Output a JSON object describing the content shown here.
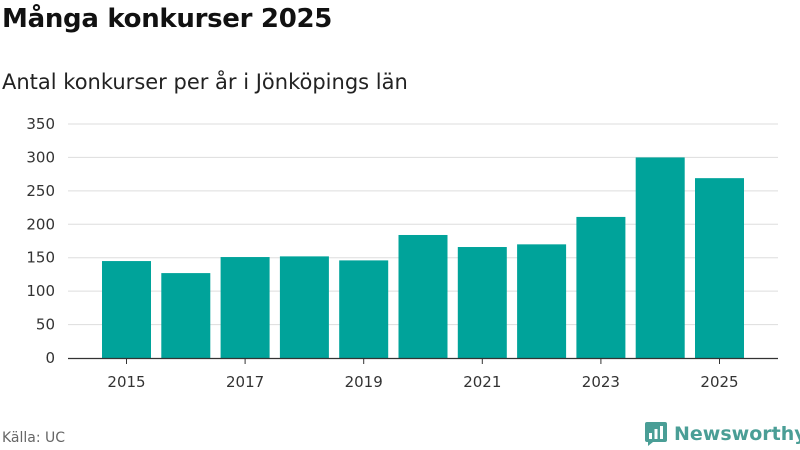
{
  "title": "Många konkurser 2025",
  "subtitle": "Antal konkurser per år i Jönköpings län",
  "source": "Källa: UC",
  "brand": {
    "name": "Newsworthy",
    "icon": "bar-chart-logo-icon"
  },
  "colors": {
    "bar": "#00a39a",
    "grid": "#dddddd",
    "axis": "#333333",
    "brand": "#4a9e96"
  },
  "chart_data": {
    "type": "bar",
    "title": "Många konkurser 2025",
    "subtitle": "Antal konkurser per år i Jönköpings län",
    "xlabel": "",
    "ylabel": "",
    "categories": [
      "2015",
      "2016",
      "2017",
      "2018",
      "2019",
      "2020",
      "2021",
      "2022",
      "2023",
      "2024",
      "2025"
    ],
    "values": [
      145,
      127,
      151,
      152,
      146,
      184,
      166,
      170,
      211,
      300,
      269
    ],
    "ylim": [
      0,
      350
    ],
    "yticks": [
      "0",
      "50",
      "100",
      "150",
      "200",
      "250",
      "300",
      "350"
    ],
    "xtick_labels": [
      "2015",
      "2017",
      "2019",
      "2021",
      "2023",
      "2025"
    ],
    "grid": true
  }
}
